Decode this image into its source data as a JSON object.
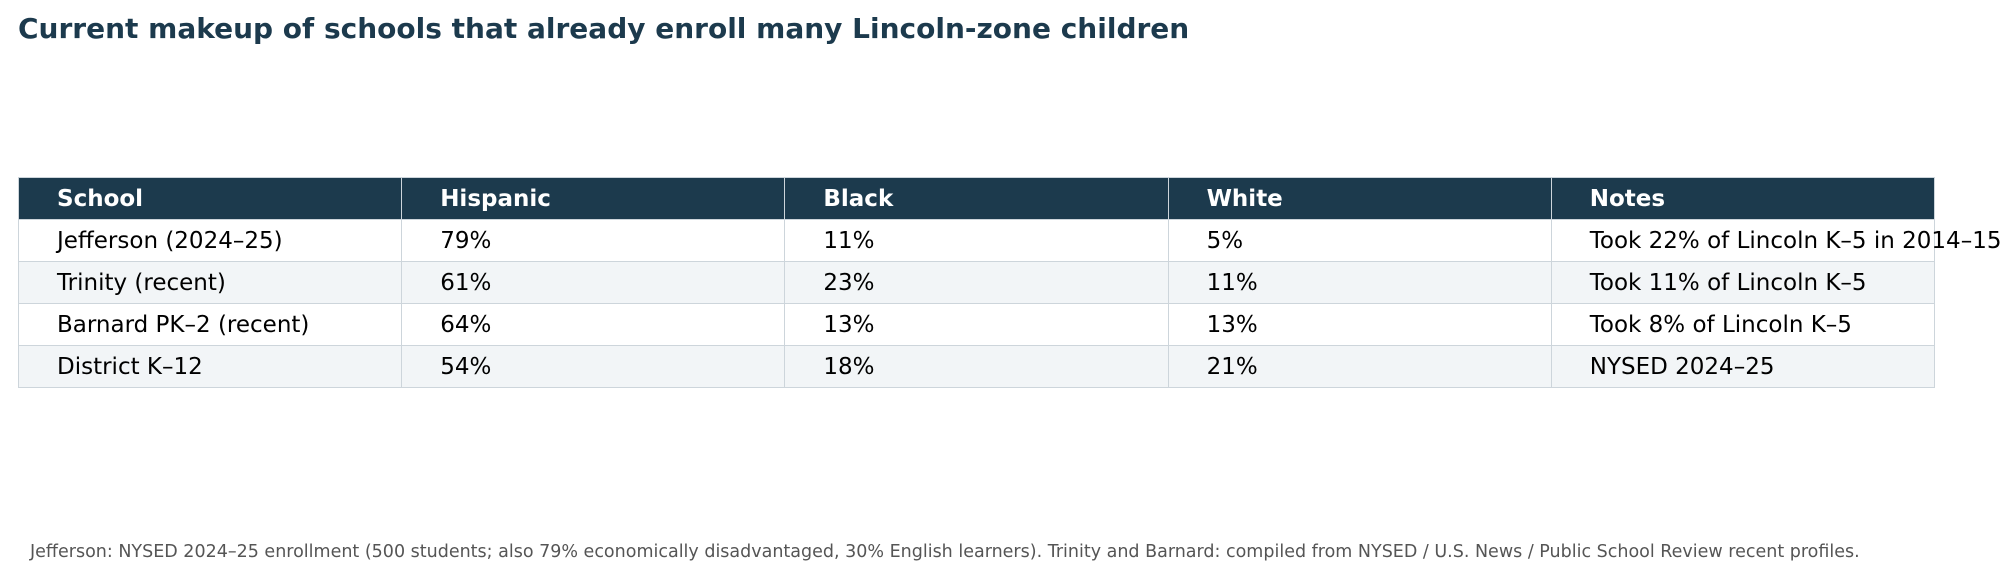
{
  "title": "Current makeup of schools that already enroll many Lincoln-zone children",
  "colors": {
    "header_bg": "#1c3a4d",
    "header_text": "#ffffff",
    "row_alt_bg": "#f2f5f7",
    "border": "#cdd5db",
    "footnote": "#555555"
  },
  "chart_data": {
    "type": "table",
    "title": "Current makeup of schools that already enroll many Lincoln-zone children",
    "columns": [
      "School",
      "Hispanic",
      "Black",
      "White",
      "Notes"
    ],
    "rows": [
      [
        "Jefferson (2024–25)",
        "79%",
        "11%",
        "5%",
        "Took 22% of Lincoln K–5 in 2014–15"
      ],
      [
        "Trinity (recent)",
        "61%",
        "23%",
        "11%",
        "Took 11% of Lincoln K–5"
      ],
      [
        "Barnard PK–2 (recent)",
        "64%",
        "13%",
        "13%",
        "Took 8% of Lincoln K–5"
      ],
      [
        "District K–12",
        "54%",
        "18%",
        "21%",
        "NYSED 2024–25"
      ]
    ]
  },
  "footnote": "Jefferson: NYSED 2024–25 enrollment (500 students; also 79% economically disadvantaged, 30% English learners). Trinity and Barnard: compiled from NYSED / U.S. News / Public School Review recent profiles."
}
